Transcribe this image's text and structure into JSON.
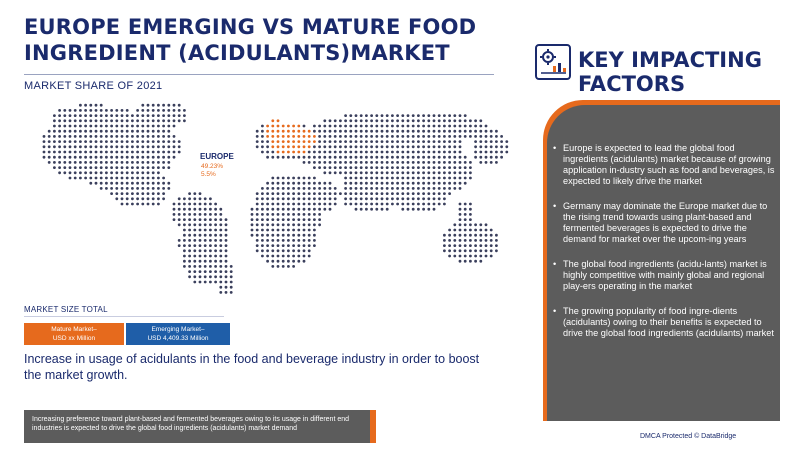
{
  "header": {
    "title_line1": "EUROPE EMERGING VS MATURE FOOD",
    "title_line2": "INGREDIENT (ACIDULANTS)MARKET",
    "subtitle": "MARKET SHARE OF 2021"
  },
  "map": {
    "highlight_region": "EUROPE",
    "share_value": "49.23%",
    "growth_value": "5.5%",
    "colors": {
      "dots": "#3a3f5c",
      "highlight": "#e66a1d"
    }
  },
  "market_size": {
    "label": "MARKET SIZE TOTAL",
    "mature": {
      "line1": "Mature Market–",
      "line2": "USD xx Million",
      "color": "#e66a1d"
    },
    "emerging": {
      "line1": "Emerging Market–",
      "line2": "USD 4,409.33 Million",
      "color": "#1f5ea8"
    }
  },
  "growth_text": "Increase in usage of acidulants in the food and beverage industry in order to boost the market growth.",
  "footer_note": "Increasing preference toward plant-based and fermented beverages owing to its usage in different end industries is expected to drive the global food ingredients (acidulants) market demand",
  "key_factors": {
    "icon": "gear-chart-icon",
    "title_line1": "KEY IMPACTING",
    "title_line2": "FACTORS",
    "bullet_symbol": "•",
    "items": [
      "Europe is expected to lead the global food ingredients (acidulants) market because of growing application in-dustry such as food and beverages, is expected to likely drive the market",
      "Germany may dominate the Europe market due to the rising trend towards using plant-based and fermented beverages is expected to drive the demand for market over the upcom-ing years",
      "The global food ingredients (acidu-lants) market is highly competitive with mainly global and regional play-ers operating in the market",
      "The growing popularity of food ingre-dients (acidulants) owing to their benefits is expected to drive the global food ingredients (acidulants) market"
    ]
  },
  "dmca": "DMCA Protected © DataBridge"
}
